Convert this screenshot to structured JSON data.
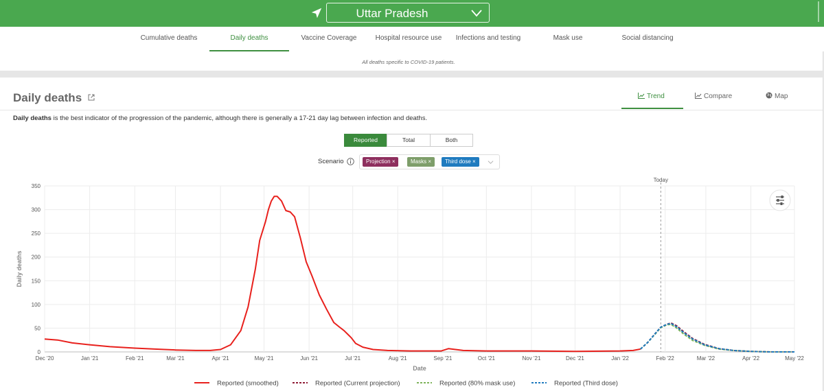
{
  "header": {
    "region": "Uttar Pradesh",
    "accent": "#4aa84f",
    "icons": [
      "location-arrow-icon",
      "chevron-down-icon"
    ]
  },
  "nav": {
    "tabs": [
      {
        "label": "Cumulative deaths",
        "active": false
      },
      {
        "label": "Daily deaths",
        "active": true
      },
      {
        "label": "Vaccine Coverage",
        "active": false
      },
      {
        "label": "Hospital resource use",
        "active": false
      },
      {
        "label": "Infections and testing",
        "active": false
      },
      {
        "label": "Mask use",
        "active": false
      },
      {
        "label": "Social distancing",
        "active": false
      }
    ]
  },
  "notice": "All deaths specific to COVID-19 patients.",
  "section": {
    "title": "Daily deaths",
    "views": [
      "Trend",
      "Compare",
      "Map"
    ],
    "active_view": "Trend",
    "description_bold": "Daily deaths",
    "description_rest": " is the best indicator of the progression of the pandemic, although there is generally a 17-21 day lag between infection and deaths.",
    "toggle": [
      "Reported",
      "Total",
      "Both"
    ],
    "toggle_active": "Reported",
    "scenario_label": "Scenario",
    "scenarios": [
      {
        "label": "Projection",
        "color": "#8e2f5e"
      },
      {
        "label": "Masks",
        "color": "#7e9e6a"
      },
      {
        "label": "Third dose",
        "color": "#1f7bbf"
      }
    ]
  },
  "chart_data": {
    "type": "line",
    "xlabel": "Date",
    "ylabel": "Daily deaths",
    "ylim": [
      0,
      350
    ],
    "yticks": [
      0,
      50,
      100,
      150,
      200,
      250,
      300,
      350
    ],
    "xticks": [
      "Dec '20",
      "Jan '21",
      "Feb '21",
      "Mar '21",
      "Apr '21",
      "May '21",
      "Jun '21",
      "Jul '21",
      "Aug '21",
      "Sep '21",
      "Oct '21",
      "Nov '21",
      "Dec '21",
      "Jan '22",
      "Feb '22",
      "Mar '22",
      "Apr '22",
      "May '22"
    ],
    "x_range": [
      "2020-12-01",
      "2022-05-01"
    ],
    "today_label": "Today",
    "today_date": "2022-01-29",
    "grid": true,
    "legend_position": "bottom",
    "series": [
      {
        "name": "Reported (smoothed)",
        "color": "#e8201c",
        "dash": false,
        "x": [
          "2020-12-01",
          "2020-12-10",
          "2020-12-20",
          "2021-01-01",
          "2021-01-15",
          "2021-02-01",
          "2021-02-15",
          "2021-03-01",
          "2021-03-15",
          "2021-03-25",
          "2021-04-01",
          "2021-04-08",
          "2021-04-15",
          "2021-04-20",
          "2021-04-25",
          "2021-04-28",
          "2021-05-02",
          "2021-05-04",
          "2021-05-06",
          "2021-05-08",
          "2021-05-10",
          "2021-05-13",
          "2021-05-16",
          "2021-05-19",
          "2021-05-22",
          "2021-05-26",
          "2021-05-30",
          "2021-06-03",
          "2021-06-08",
          "2021-06-13",
          "2021-06-18",
          "2021-06-22",
          "2021-06-25",
          "2021-06-30",
          "2021-07-03",
          "2021-07-08",
          "2021-07-15",
          "2021-07-25",
          "2021-08-10",
          "2021-08-31",
          "2021-09-05",
          "2021-09-15",
          "2021-10-01",
          "2021-11-01",
          "2021-12-01",
          "2022-01-01",
          "2022-01-10",
          "2022-01-15"
        ],
        "values": [
          27,
          25,
          19,
          15,
          11,
          8,
          6,
          4,
          3,
          3,
          5,
          15,
          45,
          95,
          175,
          235,
          275,
          300,
          318,
          328,
          328,
          318,
          298,
          295,
          285,
          240,
          190,
          160,
          120,
          90,
          62,
          52,
          45,
          30,
          18,
          10,
          5,
          3,
          2,
          2,
          7,
          3,
          2,
          2,
          1,
          2,
          3,
          6
        ]
      },
      {
        "name": "Reported (Current projection)",
        "color": "#8e1b35",
        "dash": true,
        "x": [
          "2022-01-15",
          "2022-01-20",
          "2022-01-25",
          "2022-01-29",
          "2022-02-02",
          "2022-02-05",
          "2022-02-09",
          "2022-02-14",
          "2022-02-20",
          "2022-02-28",
          "2022-03-10",
          "2022-03-20",
          "2022-04-01",
          "2022-04-15",
          "2022-05-01"
        ],
        "values": [
          6,
          20,
          38,
          52,
          58,
          61,
          55,
          42,
          28,
          16,
          7,
          3,
          1,
          0,
          0
        ]
      },
      {
        "name": "Reported (80% mask use)",
        "color": "#7eb35a",
        "dash": true,
        "x": [
          "2022-01-15",
          "2022-01-20",
          "2022-01-25",
          "2022-01-29",
          "2022-02-02",
          "2022-02-05",
          "2022-02-09",
          "2022-02-14",
          "2022-02-20",
          "2022-02-28",
          "2022-03-10",
          "2022-03-20",
          "2022-04-01",
          "2022-04-15",
          "2022-05-01"
        ],
        "values": [
          6,
          20,
          37,
          51,
          57,
          58,
          50,
          37,
          24,
          14,
          6,
          3,
          1,
          0,
          0
        ]
      },
      {
        "name": "Reported (Third dose)",
        "color": "#1f7bbf",
        "dash": true,
        "x": [
          "2022-01-15",
          "2022-01-20",
          "2022-01-25",
          "2022-01-29",
          "2022-02-02",
          "2022-02-05",
          "2022-02-09",
          "2022-02-14",
          "2022-02-20",
          "2022-02-28",
          "2022-03-10",
          "2022-03-20",
          "2022-04-01",
          "2022-04-15",
          "2022-05-01"
        ],
        "values": [
          6,
          20,
          38,
          52,
          58,
          60,
          53,
          40,
          27,
          15,
          7,
          3,
          1,
          0,
          0
        ]
      }
    ]
  }
}
